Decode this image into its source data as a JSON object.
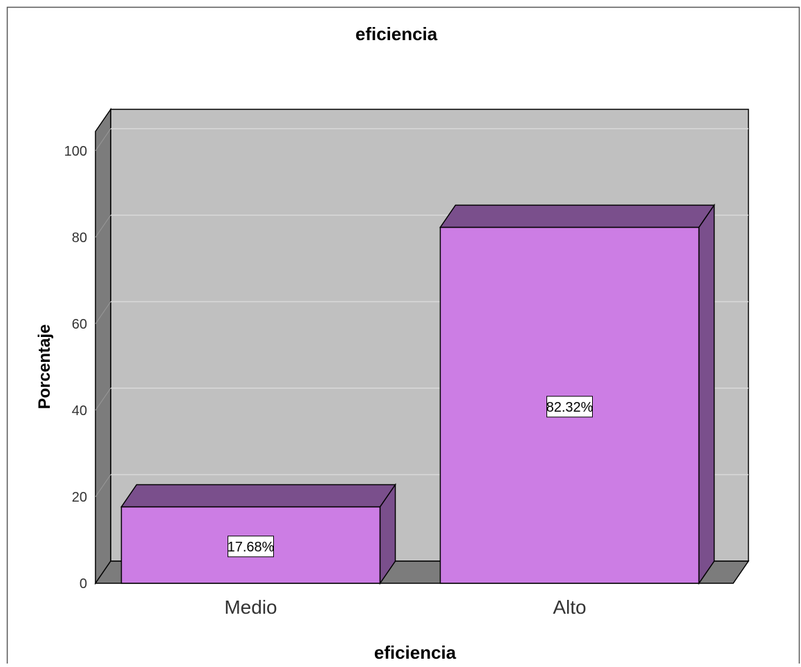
{
  "chart_data": {
    "type": "bar",
    "title": "eficiencia",
    "xlabel": "eficiencia",
    "ylabel": "Porcentaje",
    "categories": [
      "Medio",
      "Alto"
    ],
    "values": [
      17.68,
      82.32
    ],
    "value_labels": [
      "17.68%",
      "82.32%"
    ],
    "ylim": [
      0,
      100
    ],
    "yticks": [
      0,
      20,
      40,
      60,
      80,
      100
    ],
    "grid": true,
    "style": "3d",
    "colors": {
      "bar_face": "#CC7DE4",
      "bar_top": "#7A4F8C",
      "bar_side": "#7A4F8C",
      "plot_back": "#C0C0C0",
      "plot_wall": "#7C7C7C",
      "gridline": "#D9D9D9"
    }
  }
}
